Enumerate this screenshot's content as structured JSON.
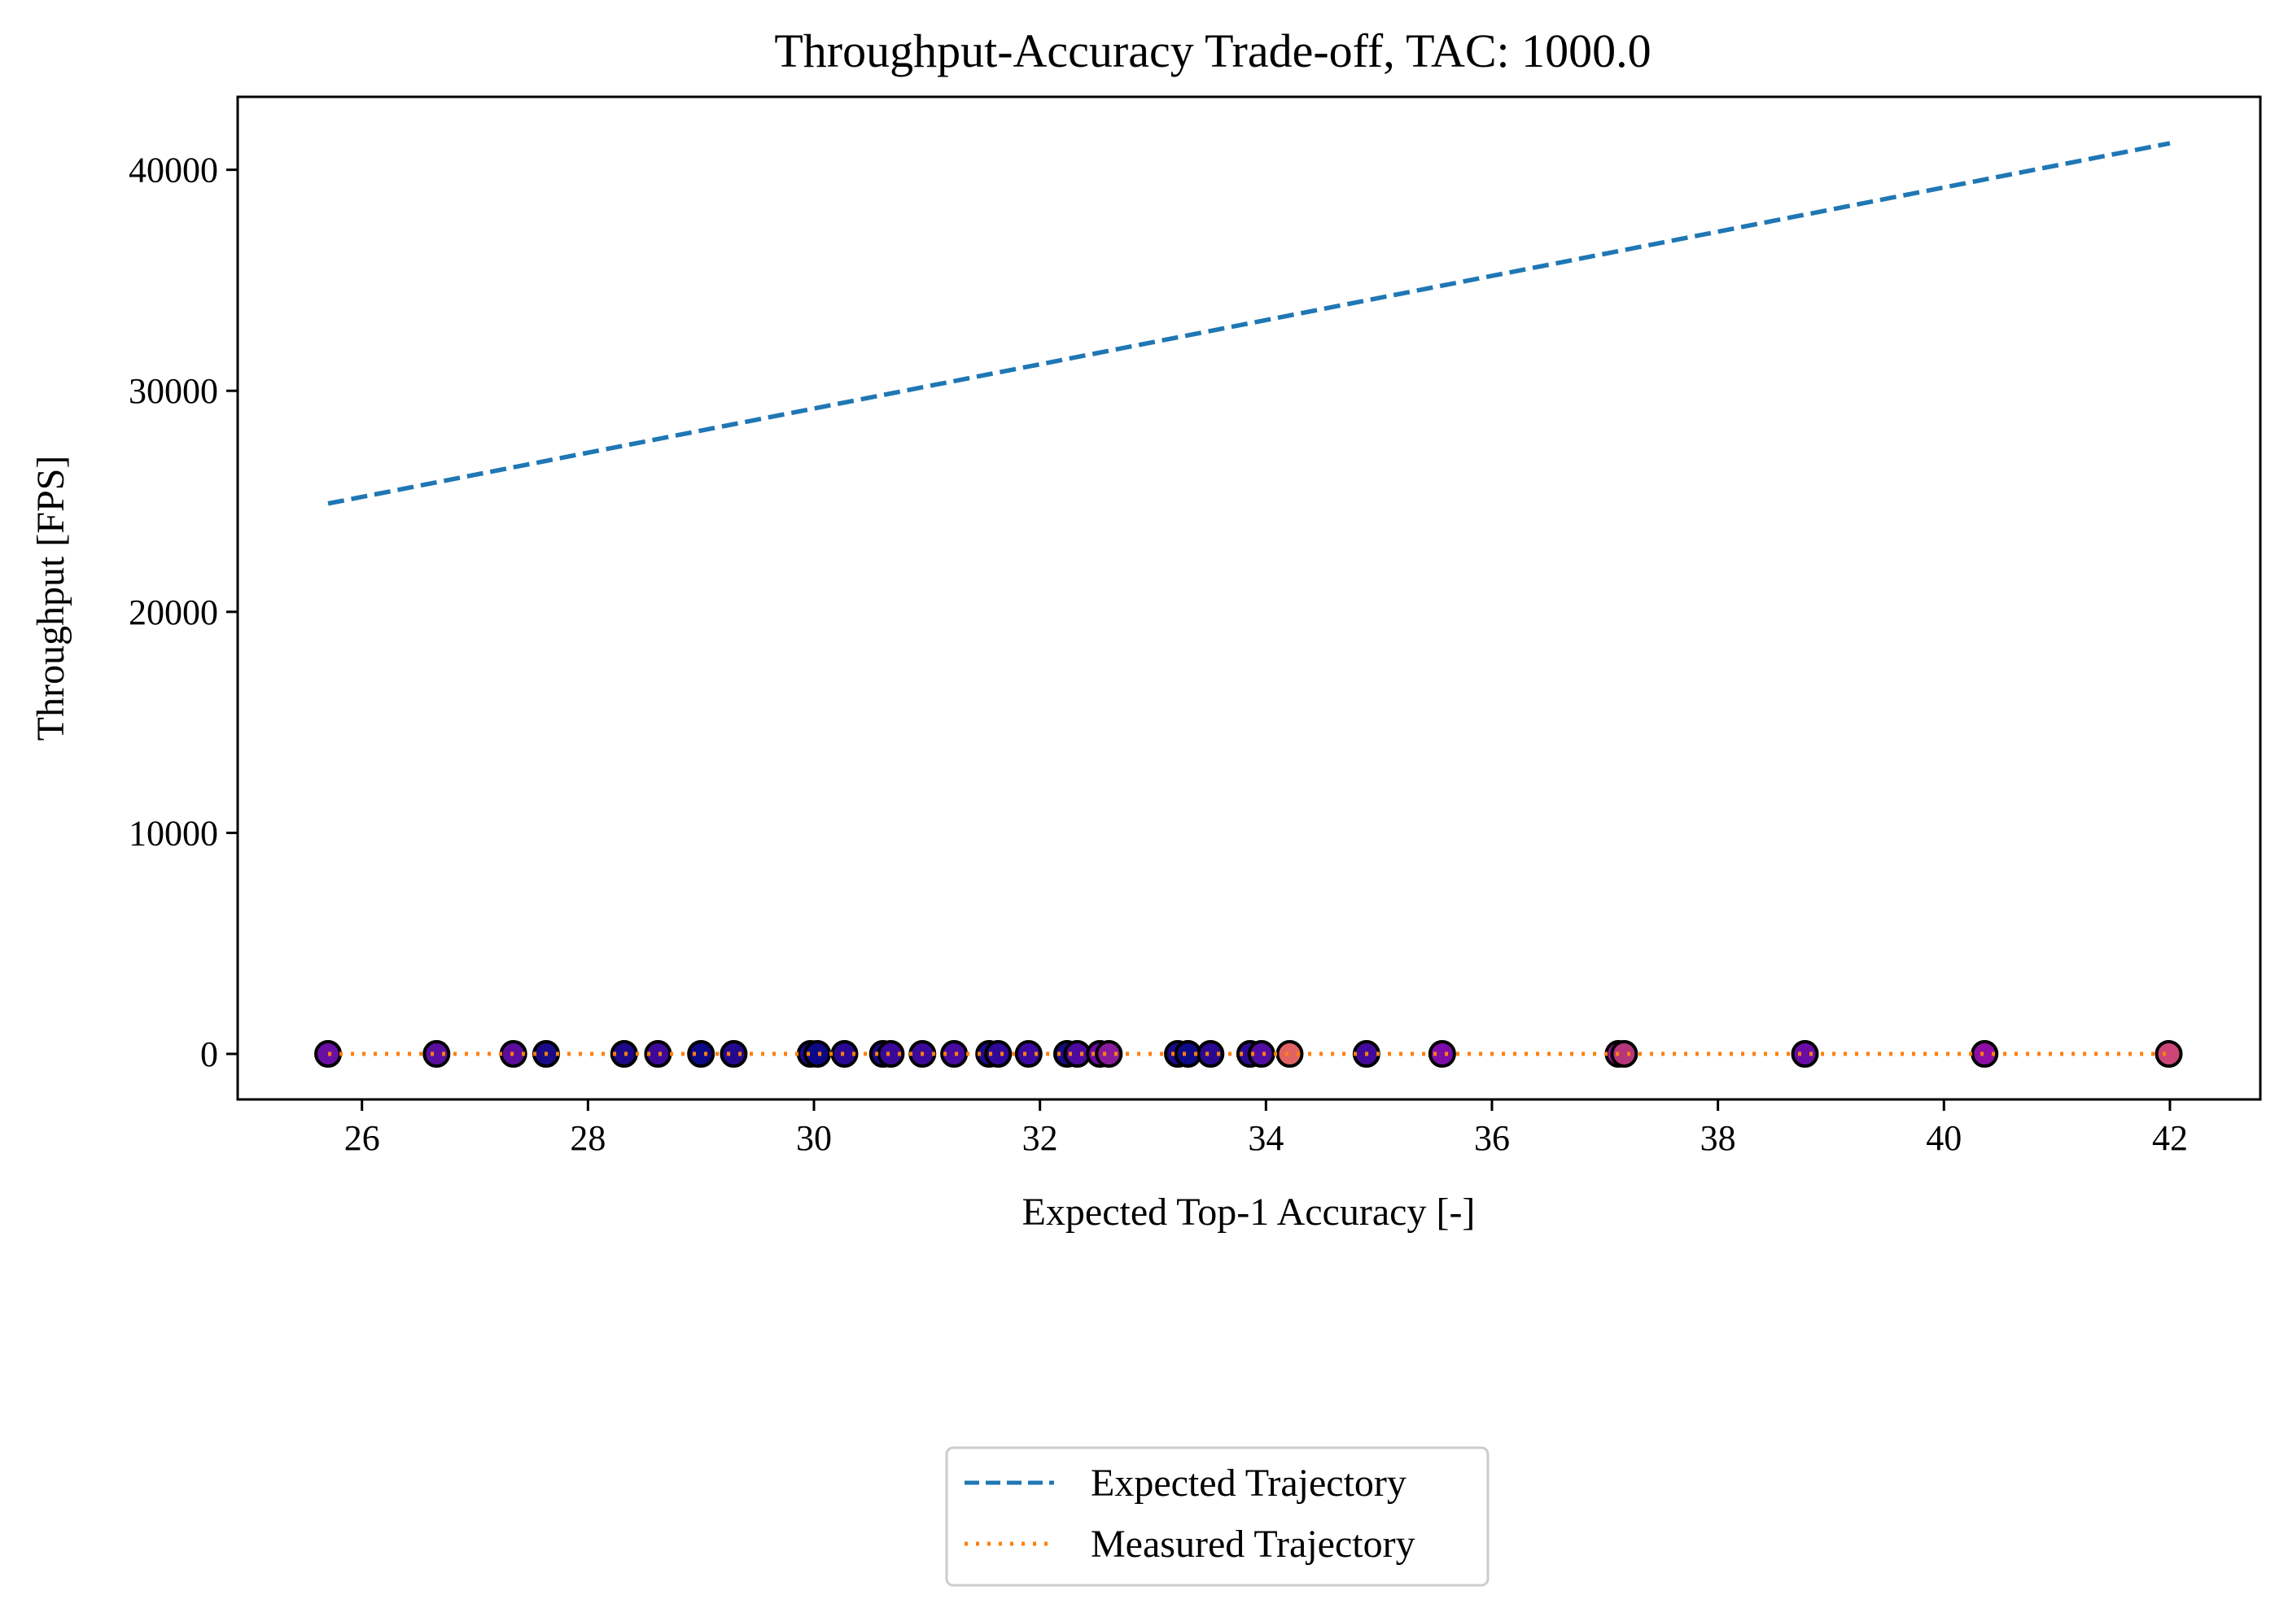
{
  "chart_data": {
    "type": "line",
    "title": "Throughput-Accuracy Trade-off, TAC: 1000.0",
    "xlabel": "Expected Top-1 Accuracy [-]",
    "ylabel": "Throughput [FPS]",
    "xlim": [
      24.9,
      42.8
    ],
    "ylim": [
      -2060,
      43300
    ],
    "x_ticks": [
      26,
      28,
      30,
      32,
      34,
      36,
      38,
      40,
      42
    ],
    "y_ticks": [
      0,
      10000,
      20000,
      30000,
      40000
    ],
    "grid": false,
    "legend": {
      "position": "bottom-center, below plot"
    },
    "series": [
      {
        "name": "Expected Trajectory",
        "style": "dashed",
        "color": "#1f77b4",
        "x": [
          25.7,
          42.0
        ],
        "y": [
          24900,
          41200
        ]
      },
      {
        "name": "Measured Trajectory",
        "style": "dotted",
        "color": "#ff7f0e",
        "x": [
          25.7,
          42.0
        ],
        "y": [
          0,
          0
        ]
      }
    ],
    "points": {
      "edgecolor": "#000000",
      "x": [
        25.7,
        26.66,
        27.34,
        27.63,
        28.32,
        28.62,
        29.0,
        29.29,
        29.97,
        30.03,
        30.27,
        30.61,
        30.68,
        30.96,
        31.24,
        31.55,
        31.63,
        31.9,
        32.24,
        32.33,
        32.53,
        32.61,
        33.22,
        33.31,
        33.51,
        33.86,
        33.96,
        34.21,
        34.89,
        35.56,
        37.12,
        37.17,
        38.77,
        40.36,
        41.99
      ],
      "y": [
        0,
        0,
        0,
        0,
        0,
        0,
        0,
        0,
        0,
        0,
        0,
        0,
        0,
        0,
        0,
        0,
        0,
        0,
        0,
        0,
        0,
        0,
        0,
        0,
        0,
        0,
        0,
        0,
        0,
        0,
        0,
        0,
        0,
        0,
        0
      ],
      "colors": [
        "#6a0fa4",
        "#5a0ea0",
        "#5c0d9e",
        "#1a0c88",
        "#1c0a8a",
        "#3e0998",
        "#0d0887",
        "#24098e",
        "#1e098c",
        "#0d0887",
        "#2a0893",
        "#1a0889",
        "#3a0898",
        "#3c0a9a",
        "#480aa0",
        "#200a8c",
        "#30089a",
        "#3b08a0",
        "#1a0b87",
        "#4e0aa0",
        "#6e0aa6",
        "#8a1a9c",
        "#1c0a8a",
        "#0f0a86",
        "#2a0990",
        "#2c0993",
        "#520da2",
        "#e16462",
        "#420a9c",
        "#7c0da6",
        "#9c179e",
        "#b5367a",
        "#6a0da6",
        "#8e0da4",
        "#cc4778"
      ]
    }
  }
}
